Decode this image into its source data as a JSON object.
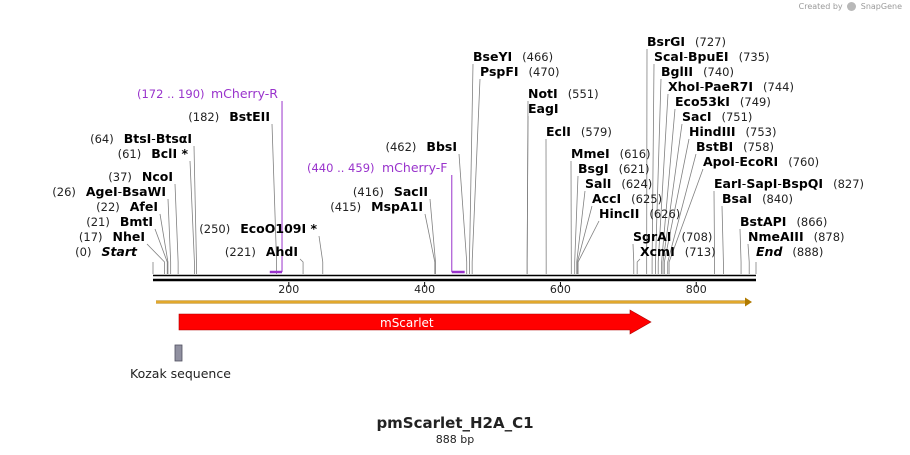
{
  "credit": {
    "prefix": "Created by",
    "brand": "SnapGene"
  },
  "plasmid": {
    "name": "pmScarlet_H2A_C1",
    "length_label": "888 bp",
    "length": 888
  },
  "ruler": {
    "ticks": [
      {
        "pos": 200,
        "label": "200"
      },
      {
        "pos": 400,
        "label": "400"
      },
      {
        "pos": 600,
        "label": "600"
      },
      {
        "pos": 800,
        "label": "800"
      }
    ]
  },
  "features": {
    "mscarlet": {
      "label": "mScarlet",
      "start": 37,
      "end": 745,
      "color": "#ff0000"
    },
    "kozak": {
      "label": "Kozak sequence",
      "start": 31,
      "end": 37,
      "color": "#9090a0"
    }
  },
  "primers": [
    {
      "name": "mCherry-R",
      "range": "(172 .. 190)",
      "start": 172,
      "end": 190,
      "color": "#9933cc"
    },
    {
      "name": "mCherry-F",
      "range": "(440 .. 459)",
      "start": 440,
      "end": 459,
      "color": "#9933cc"
    }
  ],
  "sites": [
    {
      "pos": 0,
      "label": "Start",
      "num": "(0)",
      "italic": true
    },
    {
      "pos": 17,
      "label": "NheI",
      "num": "(17)"
    },
    {
      "pos": 21,
      "label": "BmtI",
      "num": "(21)"
    },
    {
      "pos": 22,
      "label": "AfeI",
      "num": "(22)"
    },
    {
      "pos": 26,
      "label": "AgeI",
      "label2": "BsaWI",
      "num": "(26)"
    },
    {
      "pos": 37,
      "label": "NcoI",
      "num": "(37)"
    },
    {
      "pos": 61,
      "label": "BclI *",
      "num": "(61)"
    },
    {
      "pos": 64,
      "label": "BtsI",
      "label2": "BtsαI",
      "num": "(64)"
    },
    {
      "pos": 182,
      "label": "BstEII",
      "num": "(182)"
    },
    {
      "pos": 221,
      "label": "AhdI",
      "num": "(221)"
    },
    {
      "pos": 250,
      "label": "EcoO109I *",
      "num": "(250)"
    },
    {
      "pos": 415,
      "label": "MspA1I",
      "num": "(415)"
    },
    {
      "pos": 416,
      "label": "SacII",
      "num": "(416)"
    },
    {
      "pos": 462,
      "label": "BbsI",
      "num": "(462)"
    },
    {
      "pos": 466,
      "label": "BseYI",
      "num": "(466)"
    },
    {
      "pos": 470,
      "label": "PspFI",
      "num": "(470)"
    },
    {
      "pos": 551,
      "label": "NotI",
      "num": "(551)"
    },
    {
      "pos": 551,
      "label": "EagI",
      "num": ""
    },
    {
      "pos": 579,
      "label": "EclI",
      "num": "(579)"
    },
    {
      "pos": 616,
      "label": "MmeI",
      "num": "(616)"
    },
    {
      "pos": 621,
      "label": "BsgI",
      "num": "(621)"
    },
    {
      "pos": 624,
      "label": "SalI",
      "num": "(624)"
    },
    {
      "pos": 625,
      "label": "AccI",
      "num": "(625)"
    },
    {
      "pos": 626,
      "label": "HincII",
      "num": "(626)"
    },
    {
      "pos": 708,
      "label": "SgrAI",
      "num": "(708)"
    },
    {
      "pos": 713,
      "label": "XcmI",
      "num": "(713)"
    },
    {
      "pos": 727,
      "label": "BsrGI",
      "num": "(727)"
    },
    {
      "pos": 735,
      "label": "ScaI",
      "label2": "BpuEI",
      "num": "(735)"
    },
    {
      "pos": 740,
      "label": "BglII",
      "num": "(740)"
    },
    {
      "pos": 744,
      "label": "XhoI",
      "label2": "PaeR7I",
      "num": "(744)"
    },
    {
      "pos": 749,
      "label": "Eco53kI",
      "num": "(749)"
    },
    {
      "pos": 751,
      "label": "SacI",
      "num": "(751)"
    },
    {
      "pos": 753,
      "label": "HindIII",
      "num": "(753)"
    },
    {
      "pos": 758,
      "label": "BstBI",
      "num": "(758)"
    },
    {
      "pos": 760,
      "label": "ApoI",
      "label2": "EcoRI",
      "num": "(760)"
    },
    {
      "pos": 827,
      "label": "EarI",
      "label2": "SapI",
      "label3": "BspQI",
      "num": "(827)"
    },
    {
      "pos": 840,
      "label": "BsaI",
      "num": "(840)"
    },
    {
      "pos": 866,
      "label": "BstAPI",
      "num": "(866)"
    },
    {
      "pos": 878,
      "label": "NmeAIII",
      "num": "(878)"
    },
    {
      "pos": 888,
      "label": "End",
      "num": "(888)",
      "italic": true
    }
  ]
}
